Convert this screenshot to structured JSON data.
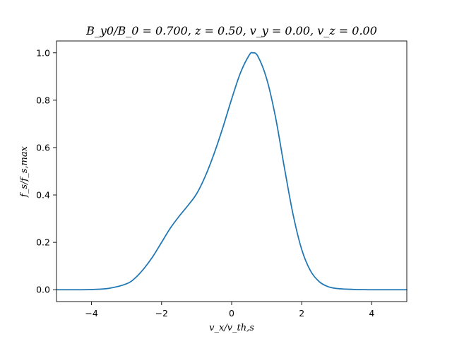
{
  "chart_data": {
    "type": "line",
    "title": "B_y0/B_0 = 0.700, z = 0.50, v_y = 0.00, v_z = 0.00",
    "xlabel": "v_x/v_th,s",
    "ylabel": "f_s/f_s,max",
    "xlim": [
      -5,
      5
    ],
    "ylim": [
      -0.05,
      1.05
    ],
    "x_ticks": [
      -4,
      -2,
      0,
      2,
      4
    ],
    "x_tick_labels": [
      "−4",
      "−2",
      "0",
      "2",
      "4"
    ],
    "y_ticks": [
      0.0,
      0.2,
      0.4,
      0.6,
      0.8,
      1.0
    ],
    "y_tick_labels": [
      "0.0",
      "0.2",
      "0.4",
      "0.6",
      "0.8",
      "1.0"
    ],
    "grid": false,
    "legend": "none",
    "series": [
      {
        "color": "#1f77b4",
        "x": [
          -5.0,
          -4.5,
          -4.0,
          -3.5,
          -3.0,
          -2.75,
          -2.5,
          -2.25,
          -2.0,
          -1.75,
          -1.5,
          -1.25,
          -1.0,
          -0.75,
          -0.5,
          -0.25,
          0.0,
          0.25,
          0.5,
          0.6,
          0.75,
          1.0,
          1.25,
          1.5,
          1.75,
          2.0,
          2.25,
          2.5,
          2.75,
          3.0,
          3.5,
          4.0,
          4.5,
          5.0
        ],
        "y": [
          0.0,
          0.0,
          0.001,
          0.006,
          0.025,
          0.05,
          0.09,
          0.14,
          0.2,
          0.26,
          0.31,
          0.355,
          0.405,
          0.48,
          0.575,
          0.685,
          0.805,
          0.915,
          0.99,
          1.0,
          0.985,
          0.89,
          0.73,
          0.52,
          0.32,
          0.17,
          0.08,
          0.034,
          0.013,
          0.005,
          0.001,
          0.0,
          0.0,
          0.0
        ]
      }
    ]
  }
}
